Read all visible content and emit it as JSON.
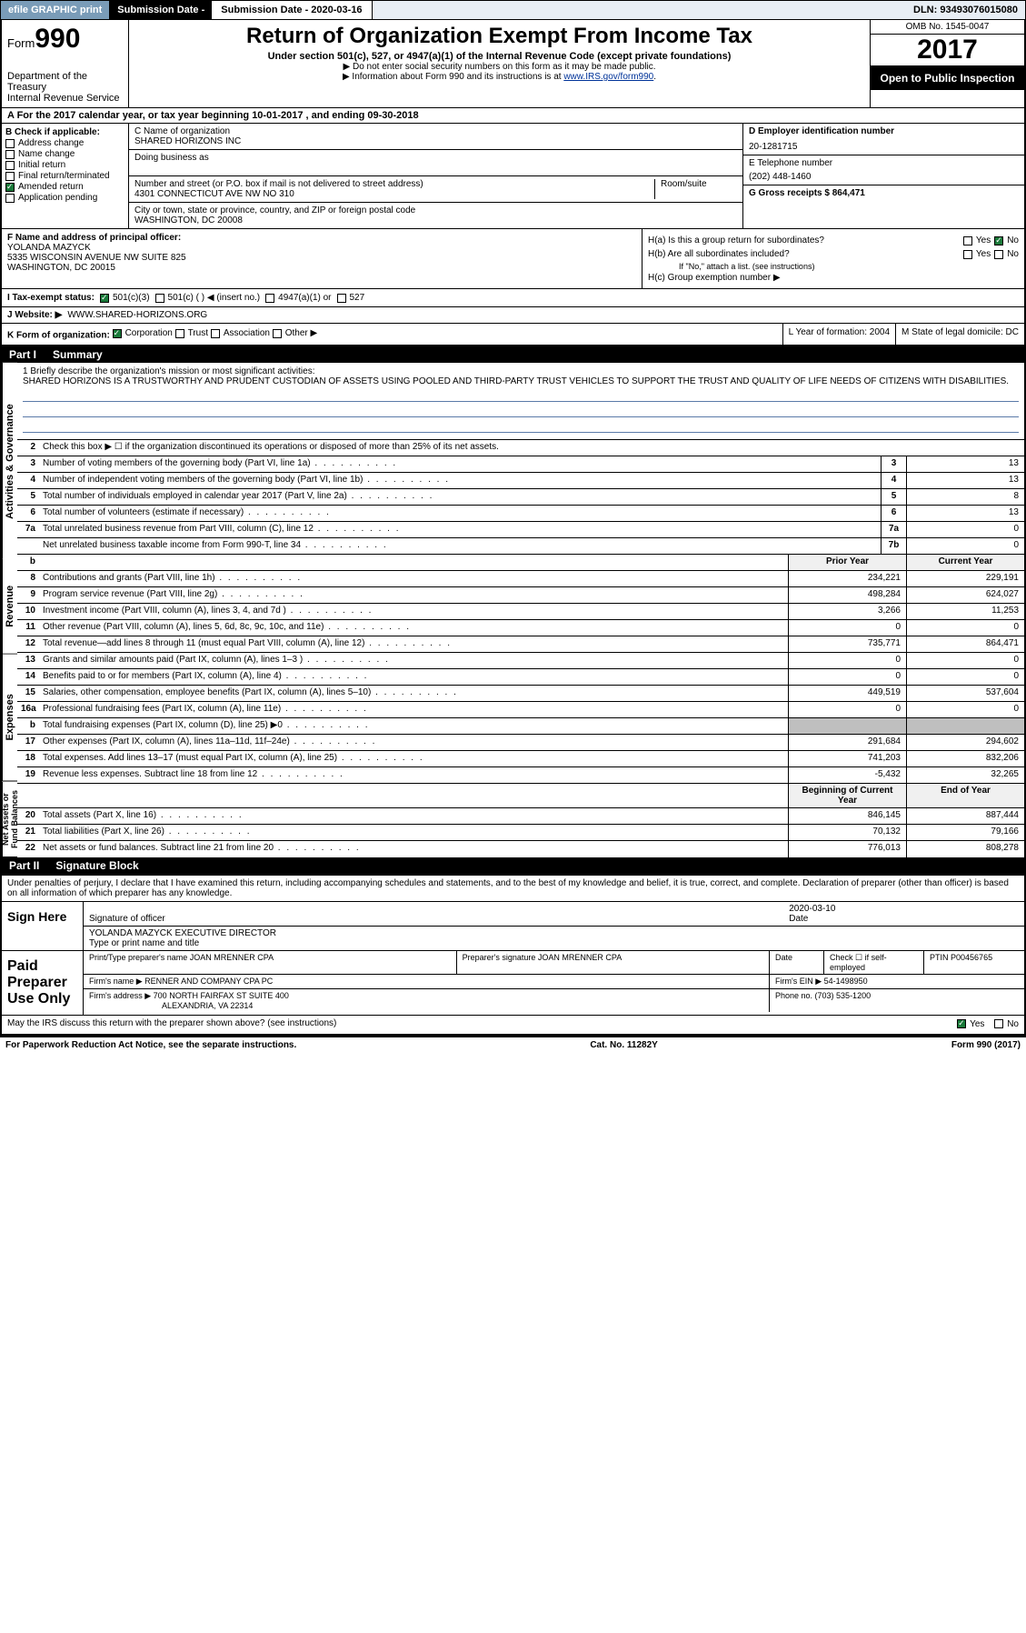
{
  "topbar": {
    "efile": "efile GRAPHIC print",
    "submission_label": "Submission Date - 2020-03-16",
    "dln": "DLN: 93493076015080"
  },
  "header": {
    "form_prefix": "Form",
    "form_number": "990",
    "dept": "Department of the Treasury",
    "irs": "Internal Revenue Service",
    "title": "Return of Organization Exempt From Income Tax",
    "subtitle": "Under section 501(c), 527, or 4947(a)(1) of the Internal Revenue Code (except private foundations)",
    "note1": "▶ Do not enter social security numbers on this form as it may be made public.",
    "note2_pre": "▶ Information about Form 990 and its instructions is at ",
    "note2_link": "www.IRS.gov/form990",
    "omb": "OMB No. 1545-0047",
    "year": "2017",
    "open": "Open to Public Inspection"
  },
  "sectionA": {
    "text": "A For the 2017 calendar year, or tax year beginning 10-01-2017    , and ending 09-30-2018"
  },
  "colB": {
    "label": "B Check if applicable:",
    "items": [
      "Address change",
      "Name change",
      "Initial return",
      "Final return/terminated",
      "Amended return",
      "Application pending"
    ],
    "checked_index": 4
  },
  "colC": {
    "name_label": "C Name of organization",
    "name": "SHARED HORIZONS INC",
    "dba_label": "Doing business as",
    "addr_label": "Number and street (or P.O. box if mail is not delivered to street address)",
    "room_label": "Room/suite",
    "addr": "4301 CONNECTICUT AVE NW NO 310",
    "city_label": "City or town, state or province, country, and ZIP or foreign postal code",
    "city": "WASHINGTON, DC  20008"
  },
  "colD": {
    "ein_label": "D Employer identification number",
    "ein": "20-1281715",
    "phone_label": "E Telephone number",
    "phone": "(202) 448-1460",
    "gross_label": "G Gross receipts $ 864,471"
  },
  "rowF": {
    "label": "F  Name and address of principal officer:",
    "name": "YOLANDA MAZYCK",
    "addr1": "5335 WISCONSIN AVENUE NW SUITE 825",
    "addr2": "WASHINGTON, DC  20015"
  },
  "rowH": {
    "ha": "H(a)  Is this a group return for subordinates?",
    "hb": "H(b)  Are all subordinates included?",
    "hb_note": "If \"No,\" attach a list. (see instructions)",
    "hc": "H(c)  Group exemption number ▶"
  },
  "rowI": {
    "label": "I    Tax-exempt status:",
    "opts": [
      "501(c)(3)",
      "501(c) (  ) ◀ (insert no.)",
      "4947(a)(1) or",
      "527"
    ]
  },
  "rowJ": {
    "label": "J    Website: ▶",
    "val": "WWW.SHARED-HORIZONS.ORG"
  },
  "rowK": {
    "label": "K Form of organization:",
    "opts": [
      "Corporation",
      "Trust",
      "Association",
      "Other ▶"
    ],
    "l_label": "L Year of formation: 2004",
    "m_label": "M State of legal domicile: DC"
  },
  "part1": {
    "label": "Part I",
    "title": "Summary"
  },
  "summary": {
    "q1_label": "1  Briefly describe the organization's mission or most significant activities:",
    "q1_text": "SHARED HORIZONS IS A TRUSTWORTHY AND PRUDENT CUSTODIAN OF ASSETS USING POOLED AND THIRD-PARTY TRUST VEHICLES TO SUPPORT THE TRUST AND QUALITY OF LIFE NEEDS OF CITIZENS WITH DISABILITIES.",
    "q2": "Check this box ▶ ☐  if the organization discontinued its operations or disposed of more than 25% of its net assets.",
    "gov_rows": [
      {
        "n": "3",
        "d": "Number of voting members of the governing body (Part VI, line 1a)",
        "b": "3",
        "v": "13"
      },
      {
        "n": "4",
        "d": "Number of independent voting members of the governing body (Part VI, line 1b)",
        "b": "4",
        "v": "13"
      },
      {
        "n": "5",
        "d": "Total number of individuals employed in calendar year 2017 (Part V, line 2a)",
        "b": "5",
        "v": "8"
      },
      {
        "n": "6",
        "d": "Total number of volunteers (estimate if necessary)",
        "b": "6",
        "v": "13"
      },
      {
        "n": "7a",
        "d": "Total unrelated business revenue from Part VIII, column (C), line 12",
        "b": "7a",
        "v": "0"
      },
      {
        "n": "",
        "d": "Net unrelated business taxable income from Form 990-T, line 34",
        "b": "7b",
        "v": "0"
      }
    ],
    "hdr_prior": "Prior Year",
    "hdr_curr": "Current Year",
    "rev_rows": [
      {
        "n": "8",
        "d": "Contributions and grants (Part VIII, line 1h)",
        "p": "234,221",
        "c": "229,191"
      },
      {
        "n": "9",
        "d": "Program service revenue (Part VIII, line 2g)",
        "p": "498,284",
        "c": "624,027"
      },
      {
        "n": "10",
        "d": "Investment income (Part VIII, column (A), lines 3, 4, and 7d )",
        "p": "3,266",
        "c": "11,253"
      },
      {
        "n": "11",
        "d": "Other revenue (Part VIII, column (A), lines 5, 6d, 8c, 9c, 10c, and 11e)",
        "p": "0",
        "c": "0"
      },
      {
        "n": "12",
        "d": "Total revenue—add lines 8 through 11 (must equal Part VIII, column (A), line 12)",
        "p": "735,771",
        "c": "864,471"
      }
    ],
    "exp_rows": [
      {
        "n": "13",
        "d": "Grants and similar amounts paid (Part IX, column (A), lines 1–3 )",
        "p": "0",
        "c": "0"
      },
      {
        "n": "14",
        "d": "Benefits paid to or for members (Part IX, column (A), line 4)",
        "p": "0",
        "c": "0"
      },
      {
        "n": "15",
        "d": "Salaries, other compensation, employee benefits (Part IX, column (A), lines 5–10)",
        "p": "449,519",
        "c": "537,604"
      },
      {
        "n": "16a",
        "d": "Professional fundraising fees (Part IX, column (A), line 11e)",
        "p": "0",
        "c": "0"
      },
      {
        "n": "b",
        "d": "Total fundraising expenses (Part IX, column (D), line 25) ▶0",
        "p": "GRAY",
        "c": "GRAY"
      },
      {
        "n": "17",
        "d": "Other expenses (Part IX, column (A), lines 11a–11d, 11f–24e)",
        "p": "291,684",
        "c": "294,602"
      },
      {
        "n": "18",
        "d": "Total expenses. Add lines 13–17 (must equal Part IX, column (A), line 25)",
        "p": "741,203",
        "c": "832,206"
      },
      {
        "n": "19",
        "d": "Revenue less expenses. Subtract line 18 from line 12",
        "p": "-5,432",
        "c": "32,265"
      }
    ],
    "hdr_beg": "Beginning of Current Year",
    "hdr_end": "End of Year",
    "net_rows": [
      {
        "n": "20",
        "d": "Total assets (Part X, line 16)",
        "p": "846,145",
        "c": "887,444"
      },
      {
        "n": "21",
        "d": "Total liabilities (Part X, line 26)",
        "p": "70,132",
        "c": "79,166"
      },
      {
        "n": "22",
        "d": "Net assets or fund balances. Subtract line 21 from line 20",
        "p": "776,013",
        "c": "808,278"
      }
    ],
    "vlabels": [
      "Activities & Governance",
      "Revenue",
      "Expenses",
      "Net Assets or Fund Balances"
    ]
  },
  "part2": {
    "label": "Part II",
    "title": "Signature Block"
  },
  "sig": {
    "penalty": "Under penalties of perjury, I declare that I have examined this return, including accompanying schedules and statements, and to the best of my knowledge and belief, it is true, correct, and complete. Declaration of preparer (other than officer) is based on all information of which preparer has any knowledge.",
    "sign_here": "Sign Here",
    "sig_officer_lbl": "Signature of officer",
    "date_lbl": "Date",
    "sig_date": "2020-03-10",
    "name_title": "YOLANDA MAZYCK  EXECUTIVE DIRECTOR",
    "name_title_lbl": "Type or print name and title",
    "paid": "Paid Preparer Use Only",
    "prep_name_lbl": "Print/Type preparer's name",
    "prep_name": "JOAN MRENNER CPA",
    "prep_sig_lbl": "Preparer's signature",
    "prep_sig": "JOAN MRENNER CPA",
    "prep_date_lbl": "Date",
    "self_emp": "Check ☐ if self-employed",
    "ptin_lbl": "PTIN",
    "ptin": "P00456765",
    "firm_name_lbl": "Firm's name    ▶",
    "firm_name": "RENNER AND COMPANY CPA PC",
    "firm_ein_lbl": "Firm's EIN ▶ 54-1498950",
    "firm_addr_lbl": "Firm's address ▶",
    "firm_addr": "700 NORTH FAIRFAX ST SUITE 400",
    "firm_city": "ALEXANDRIA, VA  22314",
    "firm_phone": "Phone no. (703) 535-1200"
  },
  "footer": {
    "discuss": "May the IRS discuss this return with the preparer shown above? (see instructions)",
    "yes": "Yes",
    "no": "No",
    "paperwork": "For Paperwork Reduction Act Notice, see the separate instructions.",
    "cat": "Cat. No. 11282Y",
    "form": "Form 990 (2017)"
  },
  "colors": {
    "link": "#003399",
    "checked": "#1a7a3a",
    "topbar_bg": "#e8eef5",
    "efile_bg": "#7a9cb8"
  }
}
